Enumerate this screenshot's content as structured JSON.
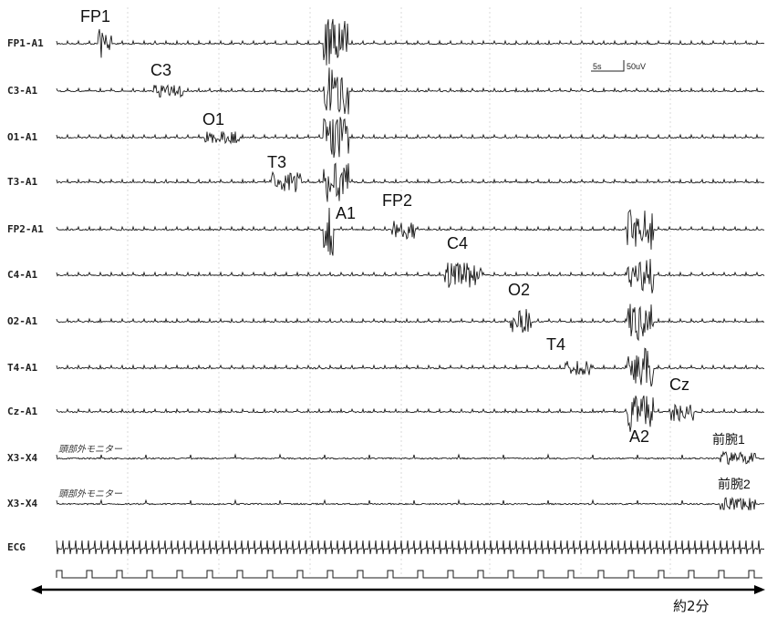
{
  "chart_data": {
    "type": "line",
    "title": "",
    "channels": [
      {
        "label": "FP1-A1",
        "event": "FP1"
      },
      {
        "label": "C3-A1",
        "event": "C3"
      },
      {
        "label": "O1-A1",
        "event": "O1"
      },
      {
        "label": "T3-A1",
        "event": "T3"
      },
      {
        "label": "FP2-A1",
        "event": "FP2"
      },
      {
        "label": "C4-A1",
        "event": "C4"
      },
      {
        "label": "O2-A1",
        "event": "O2"
      },
      {
        "label": "T4-A1",
        "event": "T4"
      },
      {
        "label": "Cz-A1",
        "event": "Cz"
      },
      {
        "label": "X3-X4",
        "sublabel": "頭部外モニター",
        "event": "前腕1"
      },
      {
        "label": "X3-X4",
        "sublabel": "頭部外モニター",
        "event": "前腕2"
      },
      {
        "label": "ECG",
        "event": ""
      }
    ],
    "reference_events": [
      "A1",
      "A2"
    ],
    "scale_bar": {
      "time": "5s",
      "amplitude": "50uV"
    },
    "duration_label": "約2分",
    "grid": true
  },
  "colors": {
    "trace": "#1a1a1a",
    "grid": "#d8d8d8",
    "background": "#ffffff"
  }
}
